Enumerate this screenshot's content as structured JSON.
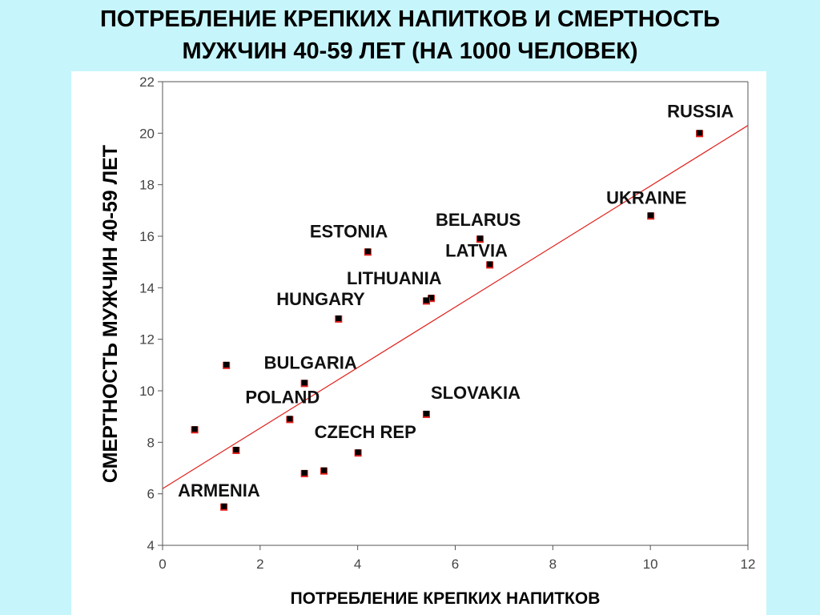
{
  "slide": {
    "title_line1": "ПОТРЕБЛЕНИЕ КРЕПКИХ НАПИТКОВ И СМЕРТНОСТЬ",
    "title_line2": "МУЖЧИН 40-59 ЛЕТ (НА 1000 ЧЕЛОВЕК)"
  },
  "chart_data": {
    "type": "scatter",
    "xlabel": "ПОТРЕБЛЕНИЕ КРЕПКИХ НАПИТКОВ",
    "ylabel": "СМЕРТНОСТЬ МУЖЧИН 40-59 ЛЕТ",
    "xlim": [
      0,
      12
    ],
    "ylim": [
      4,
      22
    ],
    "x_ticks": [
      0,
      2,
      4,
      6,
      8,
      10,
      12
    ],
    "y_ticks": [
      4,
      6,
      8,
      10,
      12,
      14,
      16,
      18,
      20,
      22
    ],
    "grid": false,
    "marker_color": "#000000",
    "marker_edge_color": "#e0201b",
    "points": [
      {
        "label": "RUSSIA",
        "x": 11.0,
        "y": 20.0
      },
      {
        "label": "UKRAINE",
        "x": 10.0,
        "y": 16.8
      },
      {
        "label": "BELARUS",
        "x": 6.5,
        "y": 15.9
      },
      {
        "label": "LATVIA",
        "x": 6.7,
        "y": 14.9
      },
      {
        "label": "ESTONIA",
        "x": 4.2,
        "y": 15.4
      },
      {
        "label": "LITHUANIA",
        "x": 5.5,
        "y": 13.6
      },
      {
        "label": "",
        "x": 5.4,
        "y": 13.5
      },
      {
        "label": "HUNGARY",
        "x": 3.6,
        "y": 12.8
      },
      {
        "label": "",
        "x": 1.3,
        "y": 11.0
      },
      {
        "label": "BULGARIA",
        "x": 2.9,
        "y": 10.3
      },
      {
        "label": "SLOVAKIA",
        "x": 5.4,
        "y": 9.1
      },
      {
        "label": "POLAND",
        "x": 2.6,
        "y": 8.9
      },
      {
        "label": "",
        "x": 0.65,
        "y": 8.5
      },
      {
        "label": "",
        "x": 1.5,
        "y": 7.7
      },
      {
        "label": "CZECH REP",
        "x": 4.0,
        "y": 7.6
      },
      {
        "label": "",
        "x": 3.3,
        "y": 6.9
      },
      {
        "label": "",
        "x": 2.9,
        "y": 6.8
      },
      {
        "label": "ARMENIA",
        "x": 1.25,
        "y": 5.5
      }
    ],
    "trendline": {
      "color": "#e0201b",
      "x": [
        0,
        12
      ],
      "y": [
        6.2,
        20.3
      ]
    }
  }
}
